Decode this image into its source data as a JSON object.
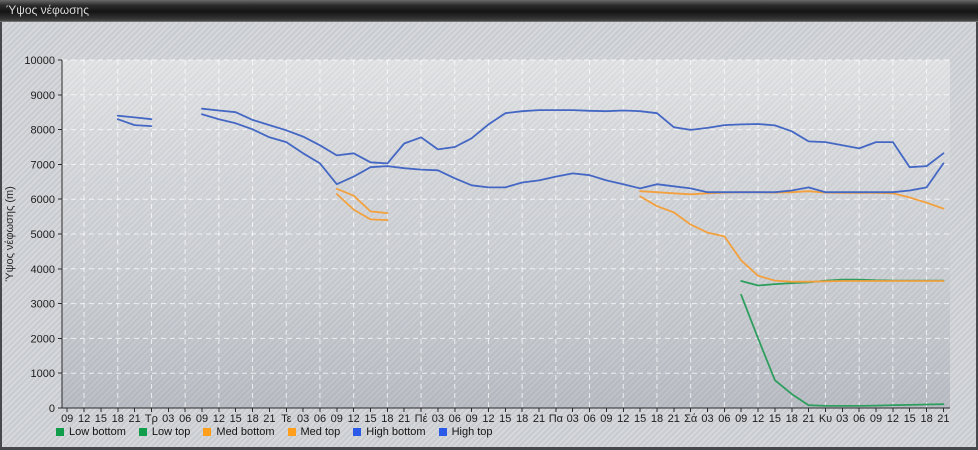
{
  "window": {
    "title": "Ύψος νέφωσης"
  },
  "chart_data": {
    "type": "line",
    "title": "Ύψος νέφωσης",
    "ylabel": "Ύψος νέφωσης (m)",
    "ylim": [
      0,
      10000
    ],
    "x_interval_hours": 3,
    "grid": "on",
    "legend_position": "bottom",
    "y_ticks": [
      0,
      1000,
      2000,
      3000,
      4000,
      5000,
      6000,
      7000,
      8000,
      9000,
      10000
    ],
    "x_tick_labels": [
      "09",
      "12",
      "15",
      "18",
      "21",
      "Τρ",
      "03",
      "06",
      "09",
      "12",
      "15",
      "18",
      "21",
      "Τε",
      "03",
      "06",
      "09",
      "12",
      "15",
      "18",
      "21",
      "Πέ",
      "03",
      "06",
      "09",
      "12",
      "15",
      "18",
      "21",
      "Πα",
      "03",
      "06",
      "09",
      "12",
      "15",
      "18",
      "21",
      "Σά",
      "03",
      "06",
      "09",
      "12",
      "15",
      "18",
      "21",
      "Κυ",
      "03",
      "06",
      "09",
      "12",
      "15",
      "18",
      "21"
    ],
    "series": [
      {
        "name": "Low bottom",
        "color": "#2e9e5e",
        "legend_color": "#119d4b",
        "segments": [
          [
            [
              40,
              3250
            ],
            [
              41,
              2000
            ],
            [
              42,
              800
            ],
            [
              43,
              400
            ],
            [
              44,
              80
            ],
            [
              45,
              60
            ],
            [
              46,
              60
            ],
            [
              47,
              60
            ],
            [
              48,
              70
            ],
            [
              49,
              80
            ],
            [
              50,
              90
            ],
            [
              51,
              100
            ],
            [
              52,
              110
            ]
          ]
        ]
      },
      {
        "name": "Low top",
        "color": "#2e9e5e",
        "legend_color": "#119d4b",
        "segments": [
          [
            [
              40,
              3650
            ],
            [
              41,
              3520
            ],
            [
              42,
              3560
            ],
            [
              43,
              3590
            ],
            [
              44,
              3610
            ],
            [
              45,
              3660
            ],
            [
              46,
              3690
            ],
            [
              47,
              3690
            ],
            [
              48,
              3670
            ],
            [
              49,
              3660
            ],
            [
              50,
              3660
            ],
            [
              51,
              3660
            ],
            [
              52,
              3660
            ]
          ]
        ]
      },
      {
        "name": "Med bottom",
        "color": "#f3a13e",
        "legend_color": "#ff9f1c",
        "segments": [
          [
            [
              16,
              6150
            ],
            [
              17,
              5700
            ],
            [
              18,
              5420
            ],
            [
              19,
              5400
            ]
          ],
          [
            [
              34,
              6080
            ],
            [
              35,
              5800
            ],
            [
              36,
              5620
            ],
            [
              37,
              5270
            ],
            [
              38,
              5040
            ],
            [
              39,
              4930
            ],
            [
              40,
              4240
            ],
            [
              41,
              3800
            ],
            [
              42,
              3660
            ],
            [
              43,
              3630
            ],
            [
              44,
              3630
            ],
            [
              45,
              3640
            ],
            [
              46,
              3650
            ],
            [
              47,
              3650
            ],
            [
              48,
              3650
            ],
            [
              49,
              3650
            ],
            [
              50,
              3650
            ],
            [
              51,
              3650
            ],
            [
              52,
              3650
            ]
          ]
        ]
      },
      {
        "name": "Med top",
        "color": "#f3a13e",
        "legend_color": "#ff9f1c",
        "segments": [
          [
            [
              16,
              6300
            ],
            [
              17,
              6100
            ],
            [
              18,
              5650
            ],
            [
              19,
              5600
            ]
          ],
          [
            [
              34,
              6230
            ],
            [
              35,
              6200
            ],
            [
              36,
              6170
            ],
            [
              37,
              6140
            ],
            [
              38,
              6170
            ],
            [
              39,
              6190
            ],
            [
              40,
              6200
            ],
            [
              41,
              6200
            ],
            [
              42,
              6190
            ],
            [
              43,
              6200
            ],
            [
              44,
              6230
            ],
            [
              45,
              6190
            ],
            [
              46,
              6180
            ],
            [
              47,
              6180
            ],
            [
              48,
              6180
            ],
            [
              49,
              6170
            ],
            [
              50,
              6050
            ],
            [
              51,
              5900
            ],
            [
              52,
              5730
            ]
          ]
        ]
      },
      {
        "name": "High bottom",
        "color": "#4467c4",
        "legend_color": "#2b59e8",
        "segments": [
          [
            [
              3,
              8300
            ],
            [
              4,
              8130
            ],
            [
              5,
              8100
            ]
          ],
          [
            [
              8,
              8440
            ],
            [
              9,
              8300
            ],
            [
              10,
              8180
            ],
            [
              11,
              8010
            ],
            [
              12,
              7780
            ],
            [
              13,
              7640
            ],
            [
              14,
              7320
            ],
            [
              15,
              7030
            ],
            [
              16,
              6430
            ],
            [
              17,
              6650
            ],
            [
              18,
              6920
            ],
            [
              19,
              6950
            ],
            [
              20,
              6890
            ],
            [
              21,
              6850
            ],
            [
              22,
              6830
            ],
            [
              23,
              6600
            ],
            [
              24,
              6400
            ],
            [
              25,
              6340
            ],
            [
              26,
              6340
            ],
            [
              27,
              6480
            ],
            [
              28,
              6540
            ],
            [
              29,
              6650
            ],
            [
              30,
              6740
            ],
            [
              31,
              6690
            ],
            [
              32,
              6540
            ],
            [
              33,
              6430
            ],
            [
              34,
              6310
            ],
            [
              35,
              6430
            ],
            [
              36,
              6370
            ],
            [
              37,
              6310
            ],
            [
              38,
              6200
            ],
            [
              39,
              6200
            ],
            [
              40,
              6200
            ],
            [
              41,
              6200
            ],
            [
              42,
              6200
            ],
            [
              43,
              6250
            ],
            [
              44,
              6340
            ],
            [
              45,
              6200
            ],
            [
              46,
              6200
            ],
            [
              47,
              6200
            ],
            [
              48,
              6200
            ],
            [
              49,
              6200
            ],
            [
              50,
              6250
            ],
            [
              51,
              6340
            ],
            [
              52,
              7030
            ]
          ]
        ]
      },
      {
        "name": "High top",
        "color": "#4467c4",
        "legend_color": "#2b59e8",
        "segments": [
          [
            [
              3,
              8400
            ],
            [
              4,
              8350
            ],
            [
              5,
              8300
            ]
          ],
          [
            [
              8,
              8600
            ],
            [
              9,
              8550
            ],
            [
              10,
              8500
            ],
            [
              11,
              8280
            ],
            [
              12,
              8130
            ],
            [
              13,
              7980
            ],
            [
              14,
              7800
            ],
            [
              15,
              7550
            ],
            [
              16,
              7260
            ],
            [
              17,
              7320
            ],
            [
              18,
              7060
            ],
            [
              19,
              7030
            ],
            [
              20,
              7600
            ],
            [
              21,
              7780
            ],
            [
              22,
              7430
            ],
            [
              23,
              7500
            ],
            [
              24,
              7750
            ],
            [
              25,
              8150
            ],
            [
              26,
              8470
            ],
            [
              27,
              8530
            ],
            [
              28,
              8560
            ],
            [
              29,
              8560
            ],
            [
              30,
              8560
            ],
            [
              31,
              8540
            ],
            [
              32,
              8530
            ],
            [
              33,
              8550
            ],
            [
              34,
              8530
            ],
            [
              35,
              8470
            ],
            [
              36,
              8070
            ],
            [
              37,
              7990
            ],
            [
              38,
              8050
            ],
            [
              39,
              8130
            ],
            [
              40,
              8150
            ],
            [
              41,
              8160
            ],
            [
              42,
              8120
            ],
            [
              43,
              7950
            ],
            [
              44,
              7660
            ],
            [
              45,
              7640
            ],
            [
              46,
              7550
            ],
            [
              47,
              7460
            ],
            [
              48,
              7640
            ],
            [
              49,
              7640
            ],
            [
              50,
              6920
            ],
            [
              51,
              6950
            ],
            [
              52,
              7320
            ]
          ]
        ]
      }
    ]
  }
}
